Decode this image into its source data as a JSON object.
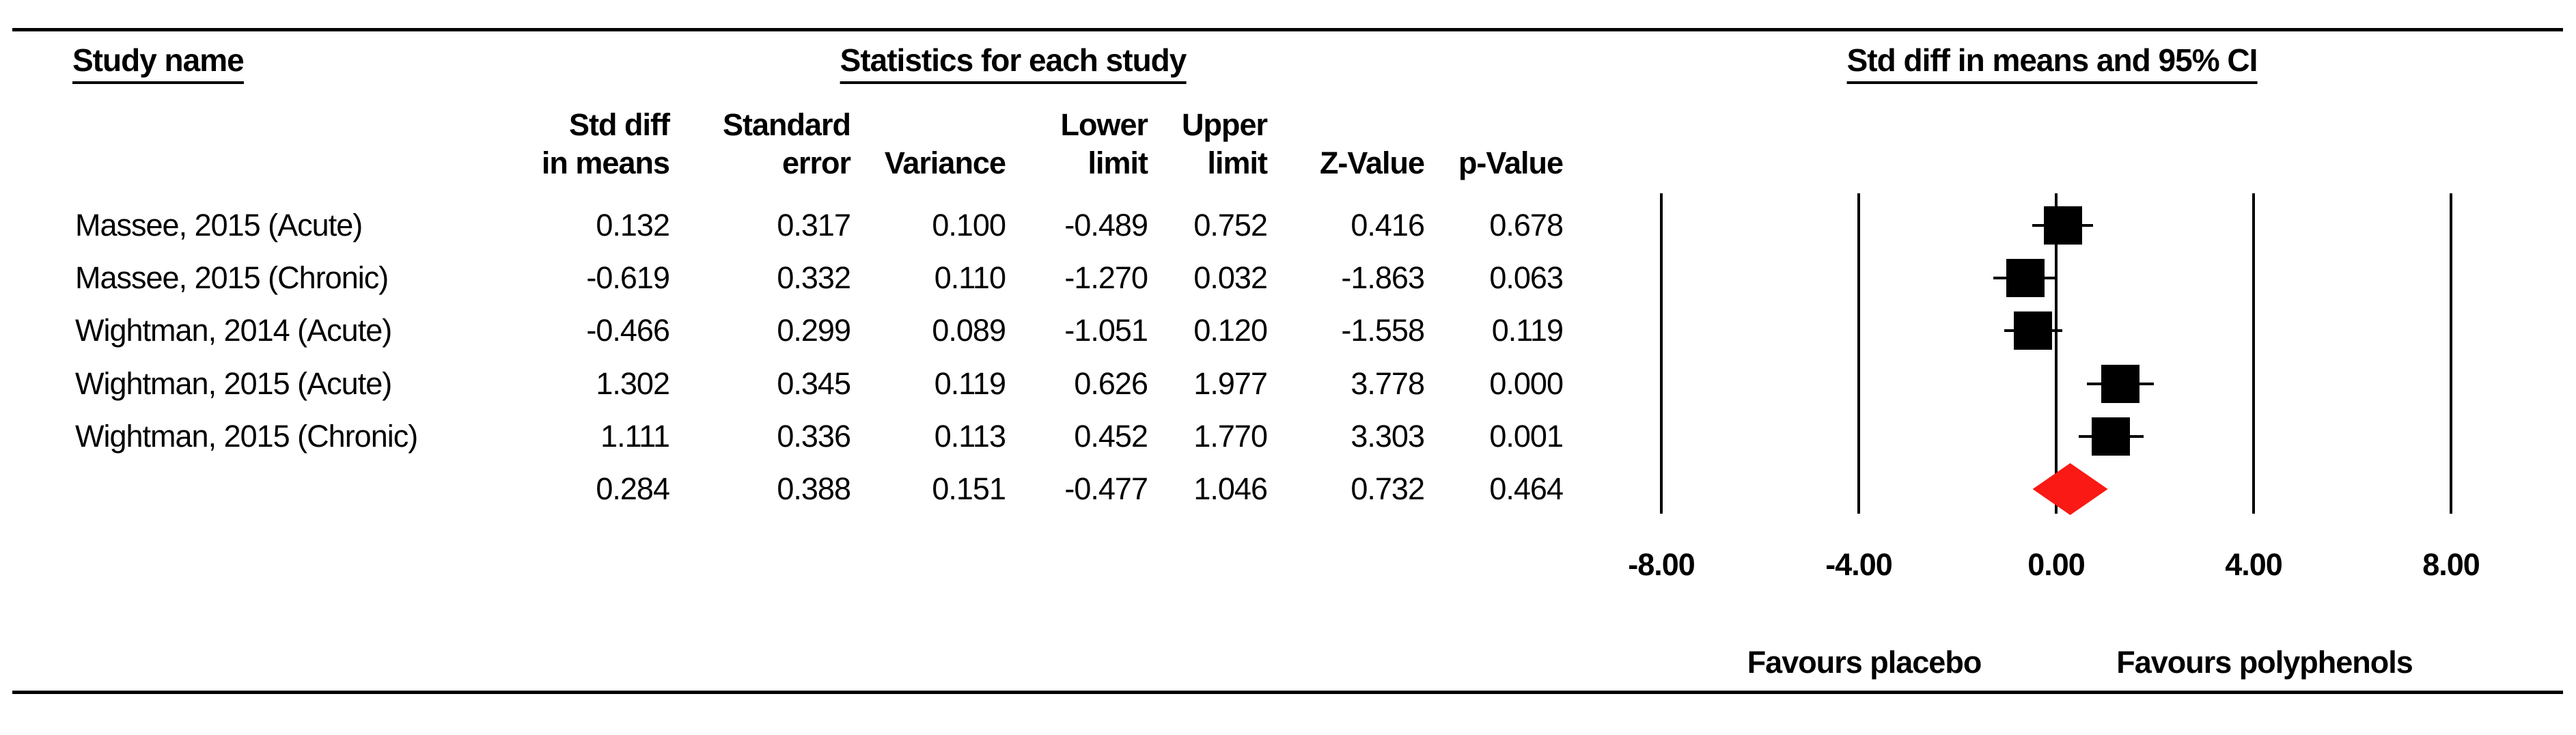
{
  "titles": {
    "study_name": "Study name",
    "statistics": "Statistics for each study",
    "ci": "Std diff in means and 95% CI"
  },
  "columns": {
    "std_diff_l1": "Std diff",
    "std_diff_l2": "in means",
    "std_err_l1": "Standard",
    "std_err_l2": "error",
    "variance": "Variance",
    "lower_l1": "Lower",
    "lower_l2": "limit",
    "upper_l1": "Upper",
    "upper_l2": "limit",
    "z": "Z-Value",
    "p": "p-Value"
  },
  "chart_data": {
    "type": "forest",
    "title": "Std diff in means and 95% CI",
    "xlabel": "Std diff in means",
    "xlim": [
      -8,
      8
    ],
    "x_ticks": [
      -8,
      -4,
      0,
      4,
      8
    ],
    "x_tick_labels": [
      "-8.00",
      "-4.00",
      "0.00",
      "4.00",
      "8.00"
    ],
    "footer_left": "Favours placebo",
    "footer_right": "Favours polyphenols",
    "marker_color": "#000000",
    "diamond_color": "#fa1914",
    "studies": [
      {
        "name": "Massee, 2015 (Acute)",
        "std_diff": 0.132,
        "std_err": 0.317,
        "variance": 0.1,
        "lower": -0.489,
        "upper": 0.752,
        "z": 0.416,
        "p": 0.678
      },
      {
        "name": "Massee, 2015 (Chronic)",
        "std_diff": -0.619,
        "std_err": 0.332,
        "variance": 0.11,
        "lower": -1.27,
        "upper": 0.032,
        "z": -1.863,
        "p": 0.063
      },
      {
        "name": "Wightman, 2014 (Acute)",
        "std_diff": -0.466,
        "std_err": 0.299,
        "variance": 0.089,
        "lower": -1.051,
        "upper": 0.12,
        "z": -1.558,
        "p": 0.119
      },
      {
        "name": "Wightman, 2015 (Acute)",
        "std_diff": 1.302,
        "std_err": 0.345,
        "variance": 0.119,
        "lower": 0.626,
        "upper": 1.977,
        "z": 3.778,
        "p": 0.0
      },
      {
        "name": "Wightman, 2015 (Chronic)",
        "std_diff": 1.111,
        "std_err": 0.336,
        "variance": 0.113,
        "lower": 0.452,
        "upper": 1.77,
        "z": 3.303,
        "p": 0.001
      }
    ],
    "overall": {
      "name": "",
      "std_diff": 0.284,
      "std_err": 0.388,
      "variance": 0.151,
      "lower": -0.477,
      "upper": 1.046,
      "z": 0.732,
      "p": 0.464
    }
  }
}
